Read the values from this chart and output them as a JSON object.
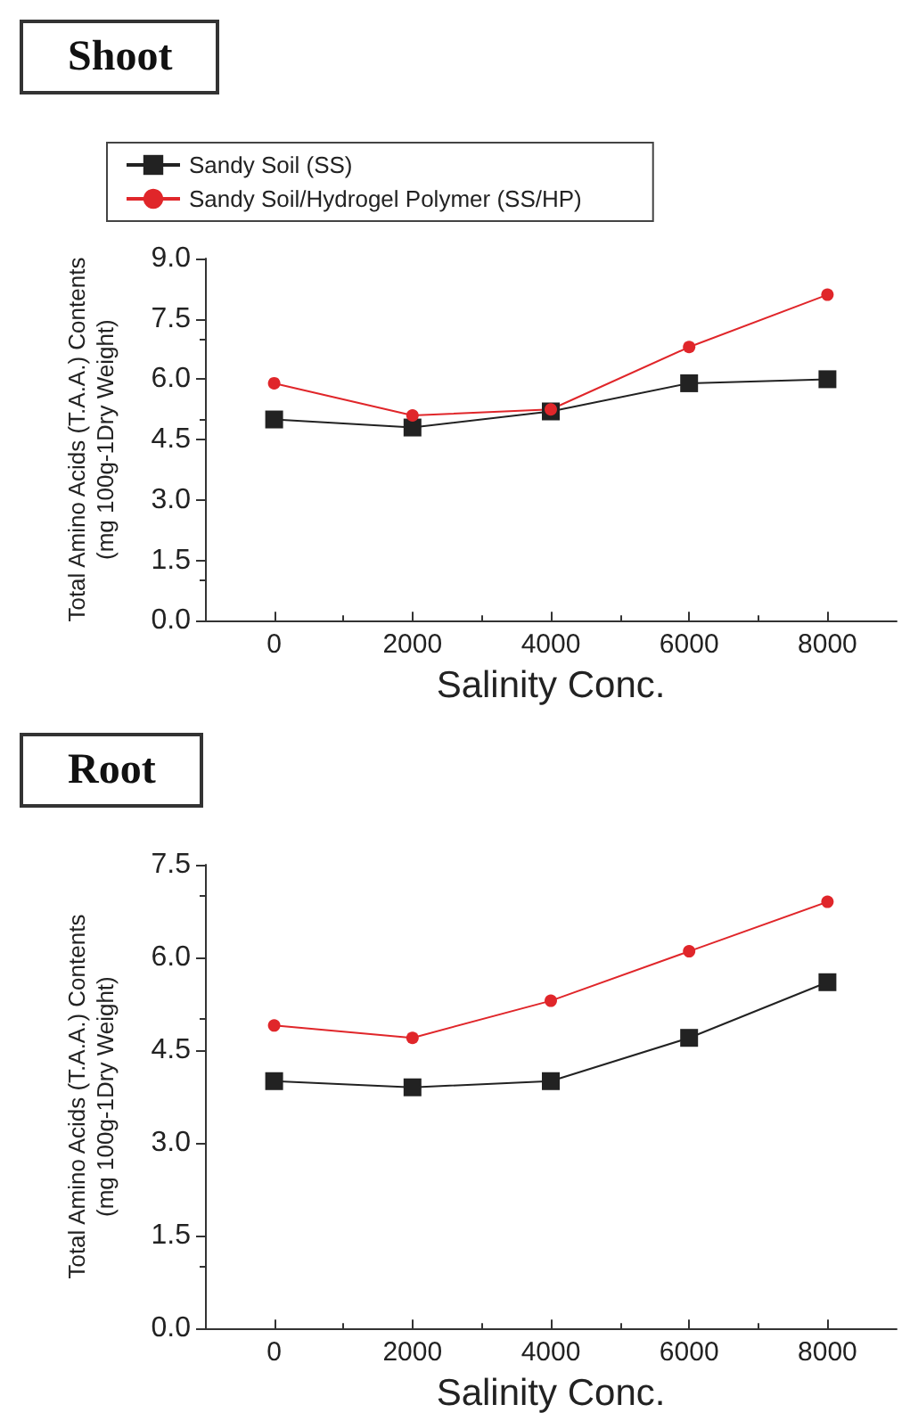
{
  "chart_data": [
    {
      "type": "line",
      "title": "Shoot",
      "xlabel": "Salinity Conc.",
      "ylabel": "Total Amino Acids (T.A.A.) Contents (mg 100g-1Dry Weight)",
      "x": [
        0,
        2000,
        4000,
        6000,
        8000
      ],
      "series": [
        {
          "name": "Sandy Soil (SS)",
          "color": "#222222",
          "marker": "square",
          "values": [
            5.0,
            4.8,
            5.2,
            5.9,
            6.0
          ]
        },
        {
          "name": "Sandy Soil/Hydrogel Polymer (SS/HP)",
          "color": "#e0262a",
          "marker": "circle",
          "values": [
            5.9,
            5.1,
            5.25,
            6.8,
            8.1
          ]
        }
      ],
      "xlim": [
        -1000,
        9000
      ],
      "xticks": [
        0,
        2000,
        4000,
        6000,
        8000
      ],
      "ylim": [
        0,
        9
      ],
      "yticks": [
        {
          "value": 0,
          "label": "0.0"
        },
        1.5,
        {
          "value": 3,
          "label": "3.0"
        },
        4.5,
        {
          "value": 6,
          "label": "6.0"
        },
        7.5,
        {
          "value": 9,
          "label": "9.0"
        }
      ],
      "grid": false,
      "legend": "top"
    },
    {
      "type": "line",
      "title": "Root",
      "xlabel": "Salinity Conc.",
      "ylabel": "Total Amino Acids (T.A.A.) Contents (mg 100g-1Dry Weight)",
      "x": [
        0,
        2000,
        4000,
        6000,
        8000
      ],
      "series": [
        {
          "color": "#222222",
          "marker": "square",
          "values": [
            4.0,
            3.9,
            4.0,
            4.7,
            5.6
          ]
        },
        {
          "color": "#e0262a",
          "marker": "circle",
          "values": [
            4.9,
            4.7,
            5.3,
            6.1,
            6.9
          ]
        }
      ],
      "xlim": [
        -1000,
        9000
      ],
      "xticks": [
        0,
        2000,
        4000,
        6000,
        8000
      ],
      "ylim": [
        0,
        7.5
      ],
      "yticks": [
        {
          "value": 0,
          "label": "0.0"
        },
        1.5,
        {
          "value": 3,
          "label": "3.0"
        },
        4.5,
        {
          "value": 6,
          "label": "6.0"
        },
        7.5
      ],
      "grid": false,
      "legend": false
    }
  ]
}
